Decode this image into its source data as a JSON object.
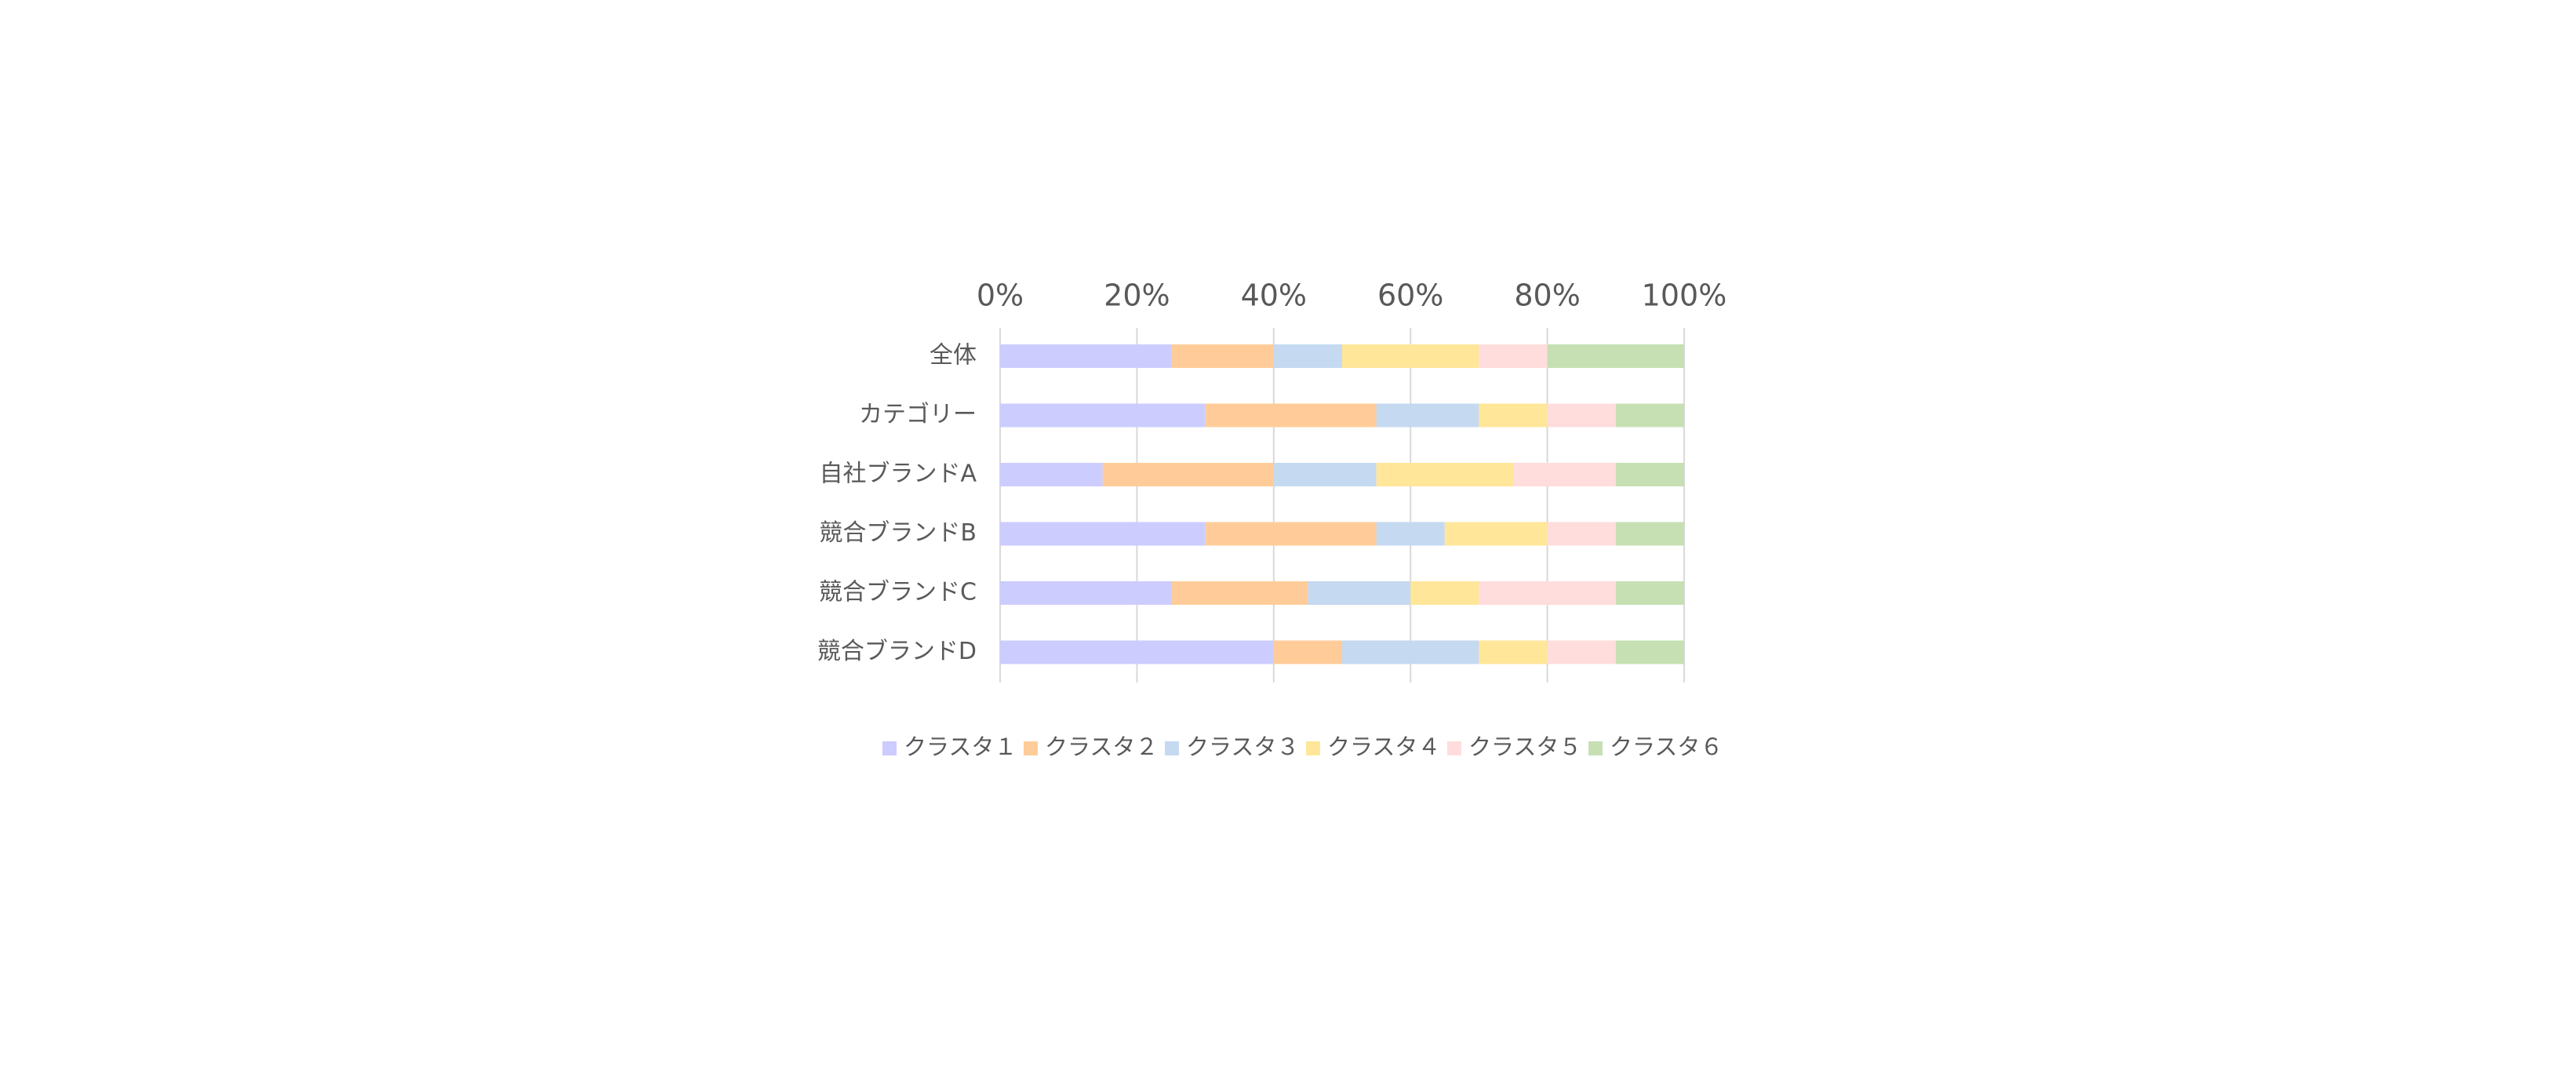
{
  "chart_data": {
    "type": "bar",
    "orientation": "horizontal",
    "stacked": "percent",
    "title": "",
    "xlabel": "",
    "ylabel": "",
    "xlim": [
      0,
      100
    ],
    "x_ticks": [
      "0%",
      "20%",
      "40%",
      "60%",
      "80%",
      "100%"
    ],
    "x_axis_position": "top",
    "grid": true,
    "legend": "bottom",
    "categories": [
      "全体",
      "カテゴリー",
      "自社ブランドA",
      "競合ブランドB",
      "競合ブランドC",
      "競合ブランドD"
    ],
    "series": [
      {
        "name": "クラスタ１",
        "color": "#CCCCFF",
        "values": [
          25,
          30,
          15,
          30,
          25,
          40
        ]
      },
      {
        "name": "クラスタ２",
        "color": "#FFCC99",
        "values": [
          15,
          25,
          25,
          25,
          20,
          10
        ]
      },
      {
        "name": "クラスタ３",
        "color": "#C5D9F1",
        "values": [
          10,
          15,
          15,
          10,
          15,
          20
        ]
      },
      {
        "name": "クラスタ４",
        "color": "#FFE699",
        "values": [
          20,
          10,
          20,
          15,
          10,
          10
        ]
      },
      {
        "name": "クラスタ５",
        "color": "#FFDDDD",
        "values": [
          10,
          10,
          15,
          10,
          20,
          10
        ]
      },
      {
        "name": "クラスタ６",
        "color": "#C6E0B4",
        "values": [
          20,
          10,
          10,
          10,
          10,
          10
        ]
      }
    ]
  }
}
